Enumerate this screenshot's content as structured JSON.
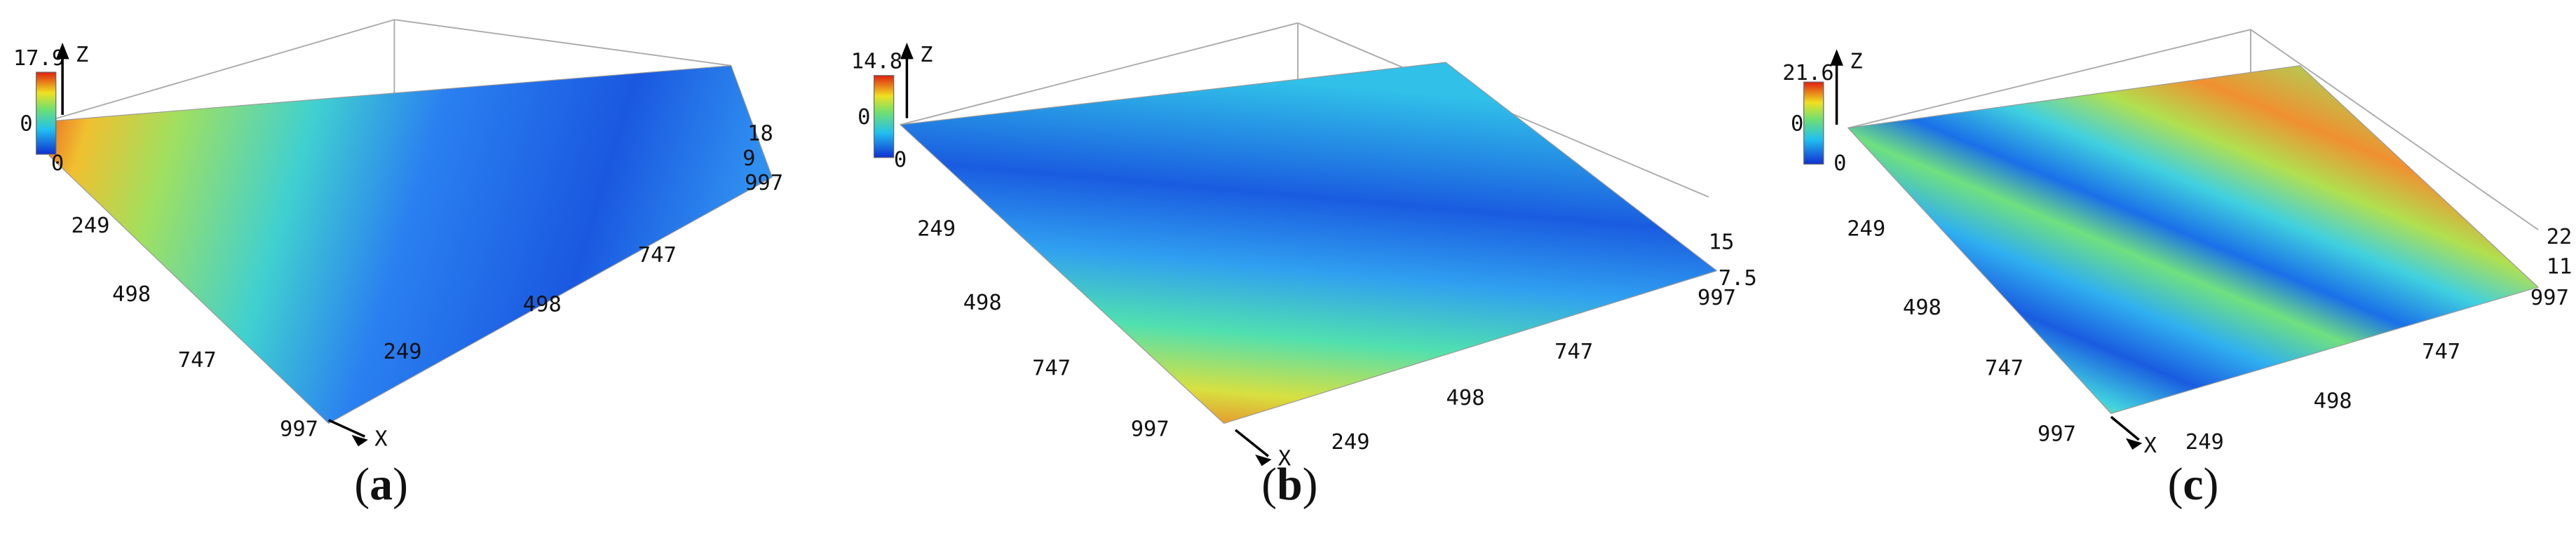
{
  "panels": [
    {
      "colorbar_max": "17.9",
      "colorbar_min": "0",
      "z_axis": "Z",
      "x_axis": "X",
      "y_ticks": [
        "0",
        "249",
        "498",
        "747",
        "997"
      ],
      "x_ticks": [
        "249",
        "498",
        "747",
        "997"
      ],
      "z_ticks": [
        "18",
        "9"
      ],
      "caption": [
        "(",
        "a",
        ")"
      ]
    },
    {
      "colorbar_max": "14.8",
      "colorbar_min": "0",
      "z_axis": "Z",
      "x_axis": "X",
      "y_ticks": [
        "0",
        "249",
        "498",
        "747",
        "997"
      ],
      "x_ticks": [
        "249",
        "498",
        "747",
        "997"
      ],
      "z_ticks": [
        "15",
        "7.5"
      ],
      "caption": [
        "(",
        "b",
        ")"
      ]
    },
    {
      "colorbar_max": "21.6",
      "colorbar_min": "0",
      "z_axis": "Z",
      "x_axis": "X",
      "y_ticks": [
        "0",
        "249",
        "498",
        "747",
        "997"
      ],
      "x_ticks": [
        "249",
        "498",
        "747",
        "997"
      ],
      "z_ticks": [
        "22",
        "11"
      ],
      "caption": [
        "(",
        "c",
        ")"
      ]
    }
  ]
}
